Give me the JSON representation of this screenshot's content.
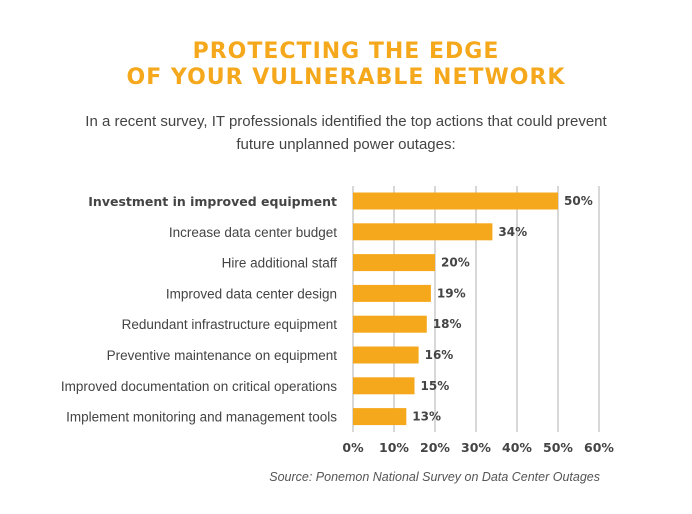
{
  "colors": {
    "accent": "#f5a81c",
    "text": "#444444",
    "grid": "#cccccc"
  },
  "subtitle": "In a recent survey, IT professionals identified the top actions that could prevent future unplanned power outages:",
  "source": "Source: Ponemon National Survey on Data Center Outages",
  "chart_data": {
    "type": "bar",
    "orientation": "horizontal",
    "title": "PROTECTING THE EDGE OF YOUR VULNERABLE NETWORK",
    "title_lines": [
      "PROTECTING THE EDGE",
      "OF YOUR VULNERABLE NETWORK"
    ],
    "categories": [
      "Investment in improved equipment",
      "Increase data center budget",
      "Hire additional staff",
      "Improved data center design",
      "Redundant infrastructure equipment",
      "Preventive maintenance on equipment",
      "Improved documentation on critical operations",
      "Implement monitoring and management tools"
    ],
    "values": [
      50,
      34,
      20,
      19,
      18,
      16,
      15,
      13
    ],
    "value_labels": [
      "50%",
      "34%",
      "20%",
      "19%",
      "18%",
      "16%",
      "15%",
      "13%"
    ],
    "highlighted_category": "Investment in improved equipment",
    "xlim": [
      0,
      60
    ],
    "xticks": [
      0,
      10,
      20,
      30,
      40,
      50,
      60
    ],
    "xtick_labels": [
      "0%",
      "10%",
      "20%",
      "30%",
      "40%",
      "50%",
      "60%"
    ],
    "grid": true
  }
}
